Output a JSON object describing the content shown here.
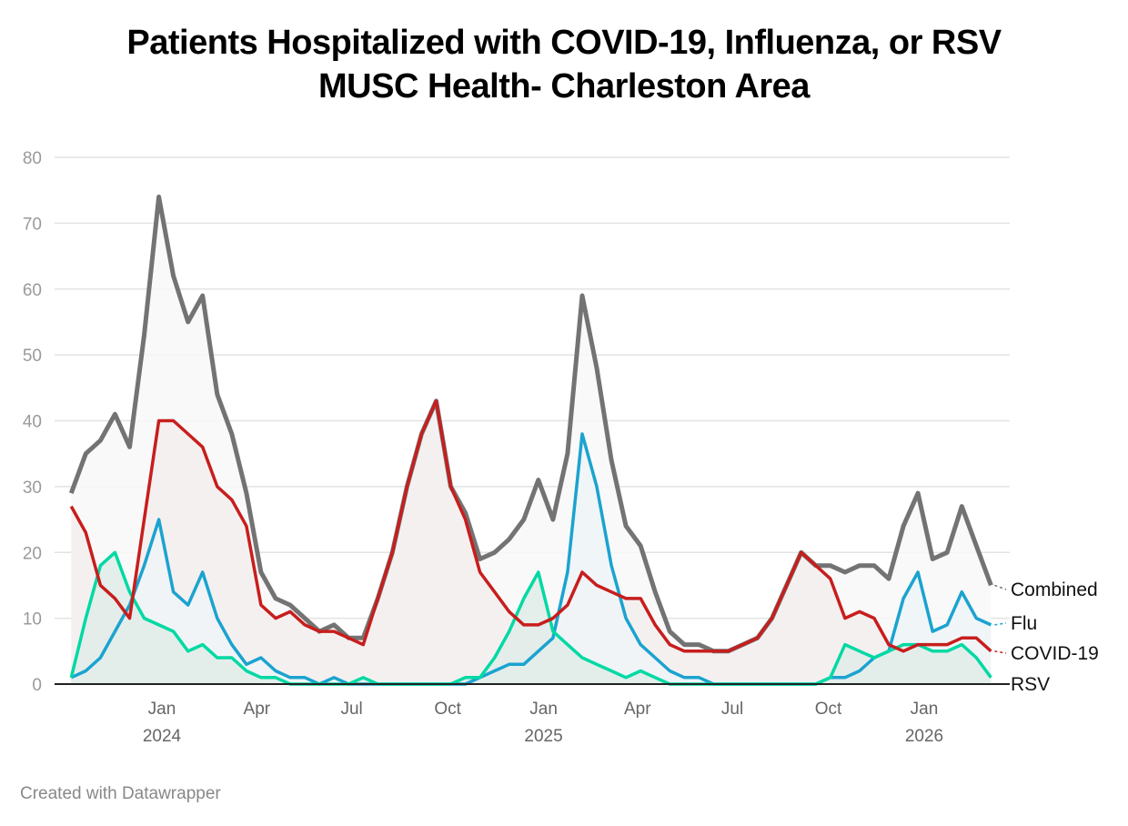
{
  "title": "Patients Hospitalized with COVID-19, Influenza, or RSV",
  "subtitle": "MUSC Health- Charleston Area",
  "footer": "Created with Datawrapper",
  "chart_data": {
    "type": "area",
    "title": "Patients Hospitalized with COVID-19, Influenza, or RSV",
    "subtitle": "MUSC Health- Charleston Area",
    "xlabel": "",
    "ylabel": "",
    "ylim": [
      0,
      80
    ],
    "yticks": [
      0,
      10,
      20,
      30,
      40,
      50,
      60,
      70,
      80
    ],
    "grid": true,
    "legend": "direct labels at line ends (right)",
    "xticks": [
      {
        "date": "2024-01-01",
        "label": "Jan",
        "year": "2024"
      },
      {
        "date": "2024-04-01",
        "label": "Apr",
        "year": ""
      },
      {
        "date": "2024-07-01",
        "label": "Jul",
        "year": ""
      },
      {
        "date": "2024-10-01",
        "label": "Oct",
        "year": ""
      },
      {
        "date": "2025-01-01",
        "label": "Jan",
        "year": "2025"
      },
      {
        "date": "2025-04-01",
        "label": "Apr",
        "year": ""
      },
      {
        "date": "2025-07-01",
        "label": "Jul",
        "year": ""
      },
      {
        "date": "2025-10-01",
        "label": "Oct",
        "year": ""
      },
      {
        "date": "2026-01-01",
        "label": "Jan",
        "year": "2026"
      }
    ],
    "x": [
      "2023-10-06",
      "2023-10-20",
      "2023-11-03",
      "2023-11-17",
      "2023-12-01",
      "2023-12-15",
      "2023-12-29",
      "2024-01-12",
      "2024-01-26",
      "2024-02-09",
      "2024-02-23",
      "2024-03-08",
      "2024-03-22",
      "2024-04-05",
      "2024-04-19",
      "2024-05-03",
      "2024-05-17",
      "2024-05-31",
      "2024-06-14",
      "2024-06-28",
      "2024-07-12",
      "2024-07-26",
      "2024-08-09",
      "2024-08-23",
      "2024-09-06",
      "2024-09-20",
      "2024-10-04",
      "2024-10-18",
      "2024-11-01",
      "2024-11-15",
      "2024-11-29",
      "2024-12-13",
      "2024-12-27",
      "2025-01-10",
      "2025-01-24",
      "2025-02-07",
      "2025-02-21",
      "2025-03-07",
      "2025-03-21",
      "2025-04-04",
      "2025-04-18",
      "2025-05-02",
      "2025-05-16",
      "2025-05-30",
      "2025-06-13",
      "2025-06-27",
      "2025-07-11",
      "2025-07-25",
      "2025-08-08",
      "2025-08-22",
      "2025-09-05",
      "2025-09-19",
      "2025-10-03",
      "2025-10-17",
      "2025-10-31",
      "2025-11-14",
      "2025-11-28",
      "2025-12-12",
      "2025-12-26",
      "2026-01-09",
      "2026-01-23",
      "2026-02-06",
      "2026-02-20",
      "2026-03-06"
    ],
    "series": [
      {
        "name": "Combined",
        "color": "#737373",
        "fill": "#f8f8f8",
        "values": [
          29,
          35,
          37,
          41,
          36,
          53,
          74,
          62,
          55,
          59,
          44,
          38,
          29,
          17,
          13,
          12,
          10,
          8,
          9,
          7,
          7,
          13,
          20,
          30,
          38,
          43,
          30,
          26,
          19,
          20,
          22,
          25,
          31,
          25,
          35,
          59,
          48,
          34,
          24,
          21,
          14,
          8,
          6,
          6,
          5,
          5,
          6,
          7,
          10,
          15,
          20,
          18,
          18,
          17,
          18,
          18,
          16,
          24,
          29,
          19,
          20,
          27,
          21,
          15
        ]
      },
      {
        "name": "COVID-19",
        "color": "#c71e1d",
        "fill": "#f5eeee",
        "values": [
          27,
          23,
          15,
          13,
          10,
          25,
          40,
          40,
          38,
          36,
          30,
          28,
          24,
          12,
          10,
          11,
          9,
          8,
          8,
          7,
          6,
          13,
          20,
          30,
          38,
          43,
          30,
          25,
          17,
          14,
          11,
          9,
          9,
          10,
          12,
          17,
          15,
          14,
          13,
          13,
          9,
          6,
          5,
          5,
          5,
          5,
          6,
          7,
          10,
          15,
          20,
          18,
          16,
          10,
          11,
          10,
          6,
          5,
          6,
          6,
          6,
          7,
          7,
          5
        ]
      },
      {
        "name": "Flu",
        "color": "#1ba3d0",
        "fill": "#eef4f8",
        "values": [
          1,
          2,
          4,
          8,
          12,
          18,
          25,
          14,
          12,
          17,
          10,
          6,
          3,
          4,
          2,
          1,
          1,
          0,
          1,
          0,
          0,
          0,
          0,
          0,
          0,
          0,
          0,
          0,
          1,
          2,
          3,
          3,
          5,
          7,
          17,
          38,
          30,
          18,
          10,
          6,
          4,
          2,
          1,
          1,
          0,
          0,
          0,
          0,
          0,
          0,
          0,
          0,
          1,
          1,
          2,
          4,
          5,
          13,
          17,
          8,
          9,
          14,
          10,
          9
        ]
      },
      {
        "name": "RSV",
        "color": "#00d9a3",
        "fill": "#e0ece9",
        "values": [
          1,
          10,
          18,
          20,
          14,
          10,
          9,
          8,
          5,
          6,
          4,
          4,
          2,
          1,
          1,
          0,
          0,
          0,
          0,
          0,
          1,
          0,
          0,
          0,
          0,
          0,
          0,
          1,
          1,
          4,
          8,
          13,
          17,
          8,
          6,
          4,
          3,
          2,
          1,
          2,
          1,
          0,
          0,
          0,
          0,
          0,
          0,
          0,
          0,
          0,
          0,
          0,
          1,
          6,
          5,
          4,
          5,
          6,
          6,
          5,
          5,
          6,
          4,
          1
        ]
      }
    ]
  }
}
